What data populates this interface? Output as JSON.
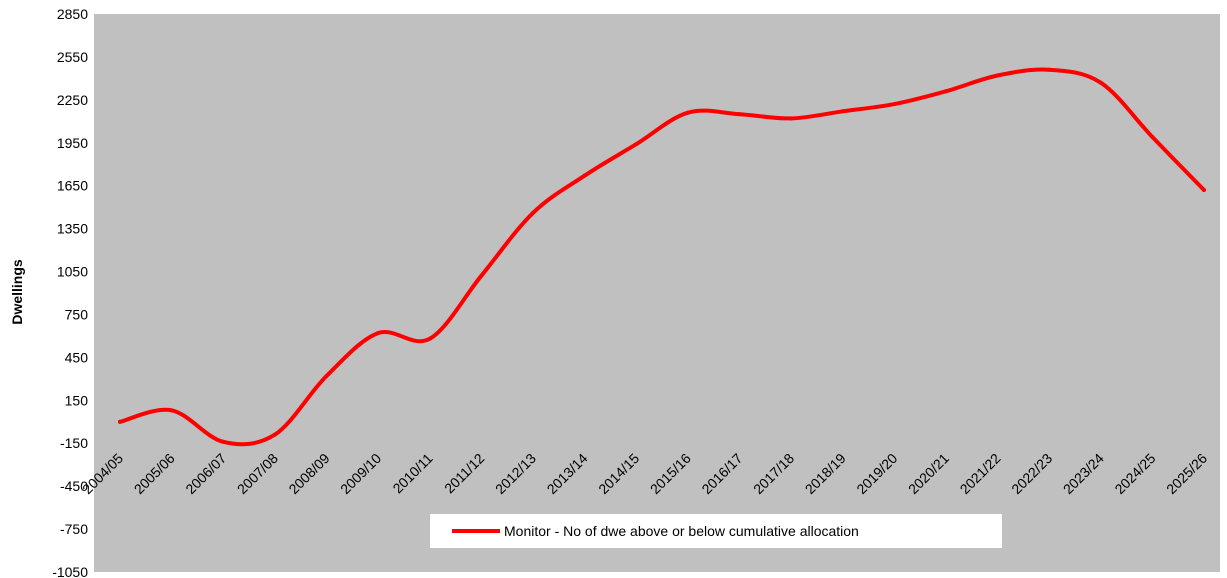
{
  "chart_data": {
    "type": "line",
    "title": "",
    "xlabel": "",
    "ylabel": "Dwellings",
    "ylim": [
      -1050,
      2850
    ],
    "yticks": [
      -1050,
      -750,
      -450,
      -150,
      150,
      450,
      750,
      1050,
      1350,
      1650,
      1950,
      2250,
      2550,
      2850
    ],
    "categories": [
      "2004/05",
      "2005/06",
      "2006/07",
      "2007/08",
      "2008/09",
      "2009/10",
      "2010/11",
      "2011/12",
      "2012/13",
      "2013/14",
      "2014/15",
      "2015/16",
      "2016/17",
      "2017/18",
      "2018/19",
      "2019/20",
      "2020/21",
      "2021/22",
      "2022/23",
      "2023/24",
      "2024/25",
      "2025/26"
    ],
    "grid": false,
    "background": "#c0c0c0",
    "legend": {
      "position": "bottom-center"
    },
    "series": [
      {
        "name": "Monitor - No of dwe above or below cumulative allocation",
        "color": "#ff0000",
        "values": [
          0,
          80,
          -140,
          -90,
          320,
          620,
          580,
          1020,
          1460,
          1720,
          1940,
          2160,
          2150,
          2120,
          2170,
          2220,
          2310,
          2420,
          2460,
          2370,
          1990,
          1620
        ]
      }
    ]
  }
}
